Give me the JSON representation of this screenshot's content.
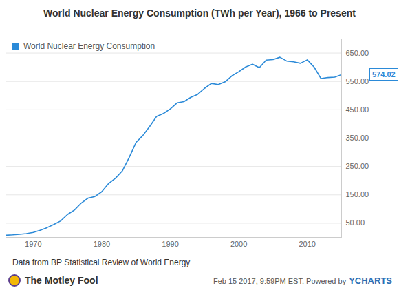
{
  "chart_data": {
    "type": "line",
    "title": "World Nuclear Energy Consumption (TWh per Year), 1966 to Present",
    "x": [
      1966,
      1967,
      1968,
      1969,
      1970,
      1971,
      1972,
      1973,
      1974,
      1975,
      1976,
      1977,
      1978,
      1979,
      1980,
      1981,
      1982,
      1983,
      1984,
      1985,
      1986,
      1987,
      1988,
      1989,
      1990,
      1991,
      1992,
      1993,
      1994,
      1995,
      1996,
      1997,
      1998,
      1999,
      2000,
      2001,
      2002,
      2003,
      2004,
      2005,
      2006,
      2007,
      2008,
      2009,
      2010,
      2011,
      2012,
      2013,
      2014,
      2015
    ],
    "series": [
      {
        "name": "World Nuclear Energy Consumption",
        "color": "#2b8ad8",
        "values": [
          7.7,
          9.0,
          11.1,
          13.2,
          17.7,
          25.0,
          34.3,
          45.6,
          58.1,
          80.9,
          96.4,
          120.8,
          138.5,
          144.1,
          161.0,
          190.0,
          208.7,
          234.4,
          281.8,
          334.7,
          359.4,
          391.3,
          426.4,
          436.9,
          453.1,
          474.5,
          478.9,
          494.1,
          504.5,
          525.6,
          542.9,
          538.9,
          548.6,
          569.9,
          584.3,
          601.0,
          610.6,
          598.7,
          625.1,
          627.2,
          635.3,
          621.8,
          619.2,
          614.0,
          626.2,
          600.4,
          559.9,
          563.7,
          565.0,
          574.02
        ]
      }
    ],
    "xlim": [
      1966,
      2015
    ],
    "xticks": [
      1970,
      1980,
      1990,
      2000,
      2010
    ],
    "ylim": [
      0,
      700
    ],
    "yticks": [
      {
        "value": 50,
        "label": "50.00"
      },
      {
        "value": 150,
        "label": "150.00"
      },
      {
        "value": 250,
        "label": "250.00"
      },
      {
        "value": 350,
        "label": "350.00"
      },
      {
        "value": 450,
        "label": "450.00"
      },
      {
        "value": 550,
        "label": "550.00"
      },
      {
        "value": 650,
        "label": "650.00"
      }
    ],
    "grid": true,
    "legend": "top-left",
    "annotations": [
      {
        "x": 2015,
        "y": 574.02,
        "label": "574.02"
      }
    ],
    "source": "Data from BP Statistical Review of World Energy",
    "footer": {
      "logo": "The Motley Fool",
      "timestamp": "Feb 15 2017, 9:59PM EST. Powered by",
      "brand": "YCHARTS"
    }
  }
}
